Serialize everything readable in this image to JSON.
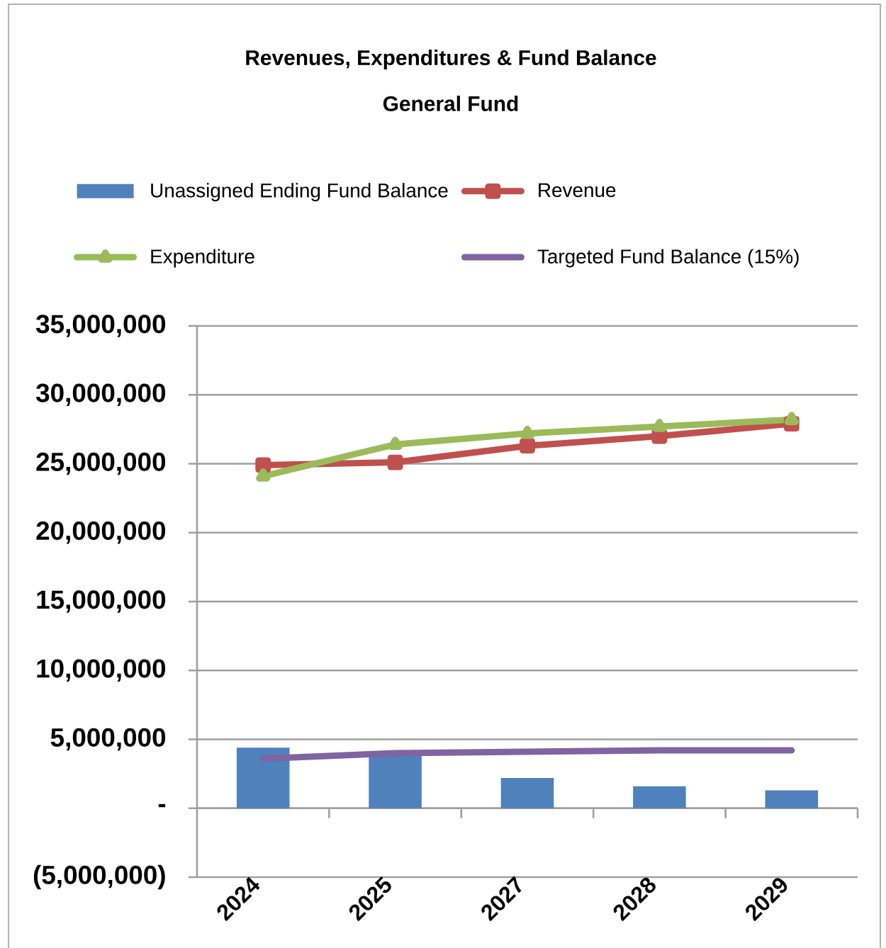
{
  "chart_data": {
    "type": "bar",
    "title": "Revenues, Expenditures & Fund Balance",
    "subtitle": "General Fund",
    "categories": [
      "2024",
      "2025",
      "2027",
      "2028",
      "2029"
    ],
    "series": [
      {
        "name": "Unassigned Ending Fund Balance",
        "color": "#4f81bd",
        "values": [
          4400000,
          3900000,
          2200000,
          1600000,
          1300000
        ]
      },
      {
        "name": "Revenue",
        "type": "line",
        "color": "#c0504d",
        "marker": "square",
        "values": [
          24900000,
          25100000,
          26300000,
          27000000,
          27900000
        ]
      },
      {
        "name": "Expenditure",
        "type": "line",
        "color": "#9bbb59",
        "marker": "triangle",
        "values": [
          24100000,
          26400000,
          27200000,
          27700000,
          28200000
        ]
      },
      {
        "name": "Targeted Fund Balance (15%)",
        "type": "line",
        "color": "#8064a2",
        "marker": "none",
        "values": [
          3600000,
          4000000,
          4100000,
          4200000,
          4200000
        ]
      }
    ],
    "ylim": [
      -5000000,
      35000000
    ],
    "yticks": [
      {
        "value": -5000000,
        "label": "(5,000,000)"
      },
      {
        "value": 0,
        "label": "-"
      },
      {
        "value": 5000000,
        "label": "5,000,000"
      },
      {
        "value": 10000000,
        "label": "10,000,000"
      },
      {
        "value": 15000000,
        "label": "15,000,000"
      },
      {
        "value": 20000000,
        "label": "20,000,000"
      },
      {
        "value": 25000000,
        "label": "25,000,000"
      },
      {
        "value": 30000000,
        "label": "30,000,000"
      },
      {
        "value": 35000000,
        "label": "35,000,000"
      }
    ],
    "grid": "y",
    "legend": "top"
  }
}
